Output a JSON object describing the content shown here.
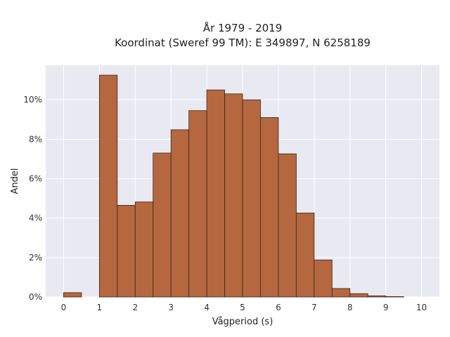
{
  "chart_data": {
    "type": "bar",
    "title": "År 1979 - 2019",
    "subtitle": "Koordinat (Sweref 99 TM): E 349897, N 6258189",
    "xlabel": "Vågperiod (s)",
    "ylabel": "Andel",
    "xlim": [
      -0.5,
      10.5
    ],
    "ylim": [
      0,
      0.1175
    ],
    "x_ticks": [
      0,
      1,
      2,
      3,
      4,
      5,
      6,
      7,
      8,
      9,
      10
    ],
    "y_ticks": [
      0,
      0.02,
      0.04,
      0.06,
      0.08,
      0.1
    ],
    "y_tick_labels": [
      "0%",
      "2%",
      "4%",
      "6%",
      "8%",
      "10%"
    ],
    "bin_width": 0.5,
    "bin_starts": [
      0,
      0.5,
      1,
      1.5,
      2,
      2.5,
      3,
      3.5,
      4,
      4.5,
      5,
      5.5,
      6,
      6.5,
      7,
      7.5,
      8,
      8.5,
      9,
      9.5
    ],
    "values": [
      0.0022,
      0,
      0.1125,
      0.0465,
      0.0482,
      0.073,
      0.0848,
      0.0945,
      0.105,
      0.103,
      0.1,
      0.091,
      0.0726,
      0.0426,
      0.0188,
      0.0043,
      0.0017,
      0.0006,
      0.0002,
      0
    ],
    "grid": true,
    "colors": {
      "bar_fill": "#b5673f",
      "bar_edge": "#3d2518",
      "plot_background": "#e9e9f2",
      "grid": "#ffffff"
    }
  }
}
